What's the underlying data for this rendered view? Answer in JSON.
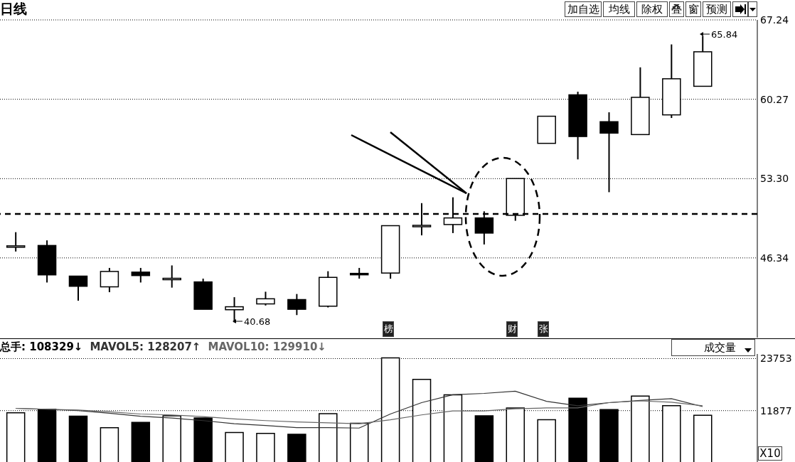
{
  "chart_data": [
    {
      "type": "candlestick",
      "title": "日线",
      "categories": [
        null,
        null,
        null,
        null,
        null,
        null,
        null,
        null,
        null,
        null,
        null,
        null,
        null,
        null,
        null,
        null,
        null,
        null,
        null,
        null,
        null,
        null,
        null
      ],
      "ohlc": [
        [
          47.3,
          48.6,
          46.9,
          47.4
        ],
        [
          47.43,
          47.88,
          44.18,
          44.85
        ],
        [
          44.74,
          44.74,
          42.58,
          43.85
        ],
        [
          43.8,
          45.46,
          43.33,
          45.15
        ],
        [
          45.09,
          45.46,
          44.18,
          44.79
        ],
        [
          44.5,
          45.68,
          43.73,
          44.55
        ],
        [
          44.23,
          44.52,
          41.83,
          41.83
        ],
        [
          41.79,
          42.89,
          40.68,
          42.05
        ],
        [
          42.3,
          43.37,
          42.16,
          42.75
        ],
        [
          42.68,
          43.17,
          41.32,
          41.83
        ],
        [
          42.1,
          45.17,
          41.99,
          44.63
        ],
        [
          44.98,
          45.46,
          44.52,
          44.9
        ],
        [
          45.01,
          49.17,
          44.51,
          49.17
        ],
        [
          49.15,
          51.15,
          48.32,
          49.2
        ],
        [
          49.27,
          51.66,
          48.52,
          49.85
        ],
        [
          49.85,
          50.43,
          47.52,
          48.52
        ],
        [
          50.08,
          53.31,
          49.6,
          53.31
        ],
        [
          56.4,
          58.78,
          56.4,
          58.78
        ],
        [
          60.66,
          60.94,
          54.99,
          57.0
        ],
        [
          58.3,
          59.13,
          52.11,
          57.3
        ],
        [
          57.17,
          63.07,
          57.17,
          60.44
        ],
        [
          58.9,
          65.08,
          58.63,
          62.07
        ],
        [
          61.41,
          65.84,
          61.41,
          64.44
        ]
      ],
      "colors": [
        "#ffffff",
        "#000000",
        "#000000",
        "#ffffff",
        "#000000",
        "#ffffff",
        "#000000",
        "#ffffff",
        "#ffffff",
        "#000000",
        "#ffffff",
        "#000000",
        "#ffffff",
        "#ffffff",
        "#ffffff",
        "#000000",
        "#ffffff",
        "#ffffff",
        "#000000",
        "#000000",
        "#ffffff",
        "#ffffff",
        "#ffffff"
      ],
      "ylim": [
        39.34,
        67.24
      ],
      "yticks": [
        46.34,
        {
          "value": 53.3,
          "label": "53.30"
        },
        60.27,
        67.24
      ],
      "grid": "y",
      "ref_lines": [
        {
          "axis": "y",
          "value": 50.2,
          "line_style": "dashed",
          "color": "#000000"
        }
      ],
      "annotations": [
        "加自选",
        "均线",
        "除权",
        "叠",
        "窗",
        "预测",
        "榜",
        "财",
        "张",
        "40.68",
        "65.84"
      ]
    },
    {
      "type": "bar",
      "categories": [
        null,
        null,
        null,
        null,
        null,
        null,
        null,
        null,
        null,
        null,
        null,
        null,
        null,
        null,
        null,
        null,
        null,
        null,
        null,
        null,
        null,
        null,
        null
      ],
      "series": [
        {
          "name": "总手: 108329↓",
          "type": "bar",
          "color": "#000000",
          "colors": [
            "#ffffff",
            "#000000",
            "#000000",
            "#ffffff",
            "#000000",
            "#ffffff",
            "#000000",
            "#ffffff",
            "#ffffff",
            "#000000",
            "#ffffff",
            "#ffffff",
            "#ffffff",
            "#ffffff",
            "#ffffff",
            "#000000",
            "#ffffff",
            "#ffffff",
            "#000000",
            "#000000",
            "#ffffff",
            "#ffffff",
            "#ffffff"
          ],
          "values": [
            11400,
            12200,
            10600,
            8000,
            9200,
            10700,
            10200,
            6900,
            6700,
            6500,
            11200,
            9000,
            23900,
            19000,
            15500,
            10700,
            12500,
            9800,
            14700,
            12100,
            15200,
            13000,
            10800
          ]
        },
        {
          "name": "MAVOL5: 128207↑",
          "type": "line",
          "color": "#333333",
          "values": [
            12400,
            12200,
            11900,
            11300,
            10600,
            10200,
            9600,
            8900,
            8500,
            8000,
            8000,
            7900,
            11100,
            13700,
            15500,
            15800,
            16300,
            14000,
            13000,
            13700,
            14200,
            14600,
            12800
          ]
        },
        {
          "name": "MAVOL10: 129910↓",
          "type": "line",
          "color": "#666666",
          "values": [
            12400,
            12200,
            12000,
            11600,
            11100,
            10900,
            10500,
            10000,
            9600,
            9300,
            9100,
            8900,
            9800,
            10900,
            11800,
            11800,
            12300,
            12500,
            12500,
            13700,
            14100,
            13800,
            13000
          ]
        }
      ],
      "ylim": [
        0,
        24800
      ],
      "yticks": [
        11877,
        23753
      ],
      "grid": "y",
      "legend": "top left",
      "marker": "none",
      "annotations": [
        "成交量",
        "X10"
      ]
    }
  ]
}
